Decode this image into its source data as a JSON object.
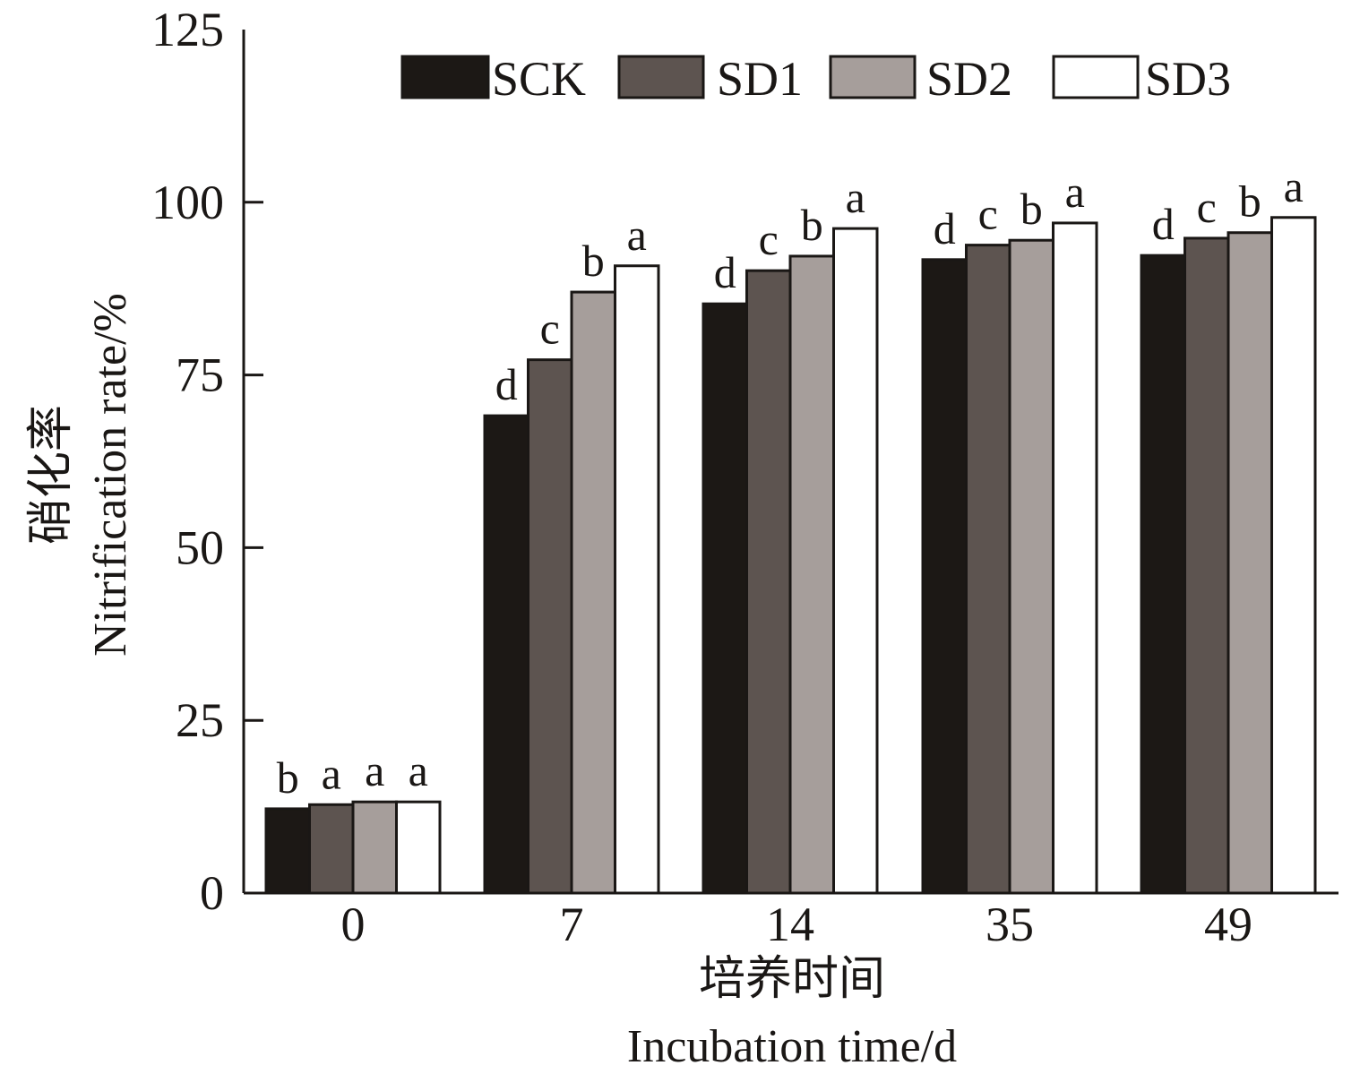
{
  "chart_data": {
    "type": "bar",
    "title": "",
    "categories": [
      "0",
      "7",
      "14",
      "35",
      "49"
    ],
    "series": [
      {
        "name": "SCK",
        "color": "#1c1815",
        "values": [
          12.2,
          69.1,
          85.3,
          91.7,
          92.3
        ],
        "letters": [
          "b",
          "d",
          "d",
          "d",
          "d"
        ]
      },
      {
        "name": "SD1",
        "color": "#5d5450",
        "values": [
          12.8,
          77.2,
          90.1,
          93.8,
          94.8
        ],
        "letters": [
          "a",
          "c",
          "c",
          "c",
          "c"
        ]
      },
      {
        "name": "SD2",
        "color": "#a69e9b",
        "values": [
          13.2,
          87.0,
          92.2,
          94.5,
          95.6
        ],
        "letters": [
          "a",
          "b",
          "b",
          "b",
          "b"
        ]
      },
      {
        "name": "SD3",
        "color": "#ffffff",
        "values": [
          13.2,
          90.8,
          96.2,
          97.0,
          97.8
        ],
        "letters": [
          "a",
          "a",
          "a",
          "a",
          "a"
        ]
      }
    ],
    "xlabel_cn": "培养时间",
    "xlabel": "Incubation time/d",
    "ylabel_cn": "硝化率",
    "ylabel": "Nitrification rate/%",
    "ylim": [
      0,
      125
    ],
    "yticks": [
      "0",
      "25",
      "50",
      "75",
      "100",
      "125"
    ],
    "ytick_values": [
      0,
      25,
      50,
      75,
      100,
      125
    ],
    "grid": false,
    "legend_position": "top-right",
    "stroke_color": "#1a1715"
  }
}
